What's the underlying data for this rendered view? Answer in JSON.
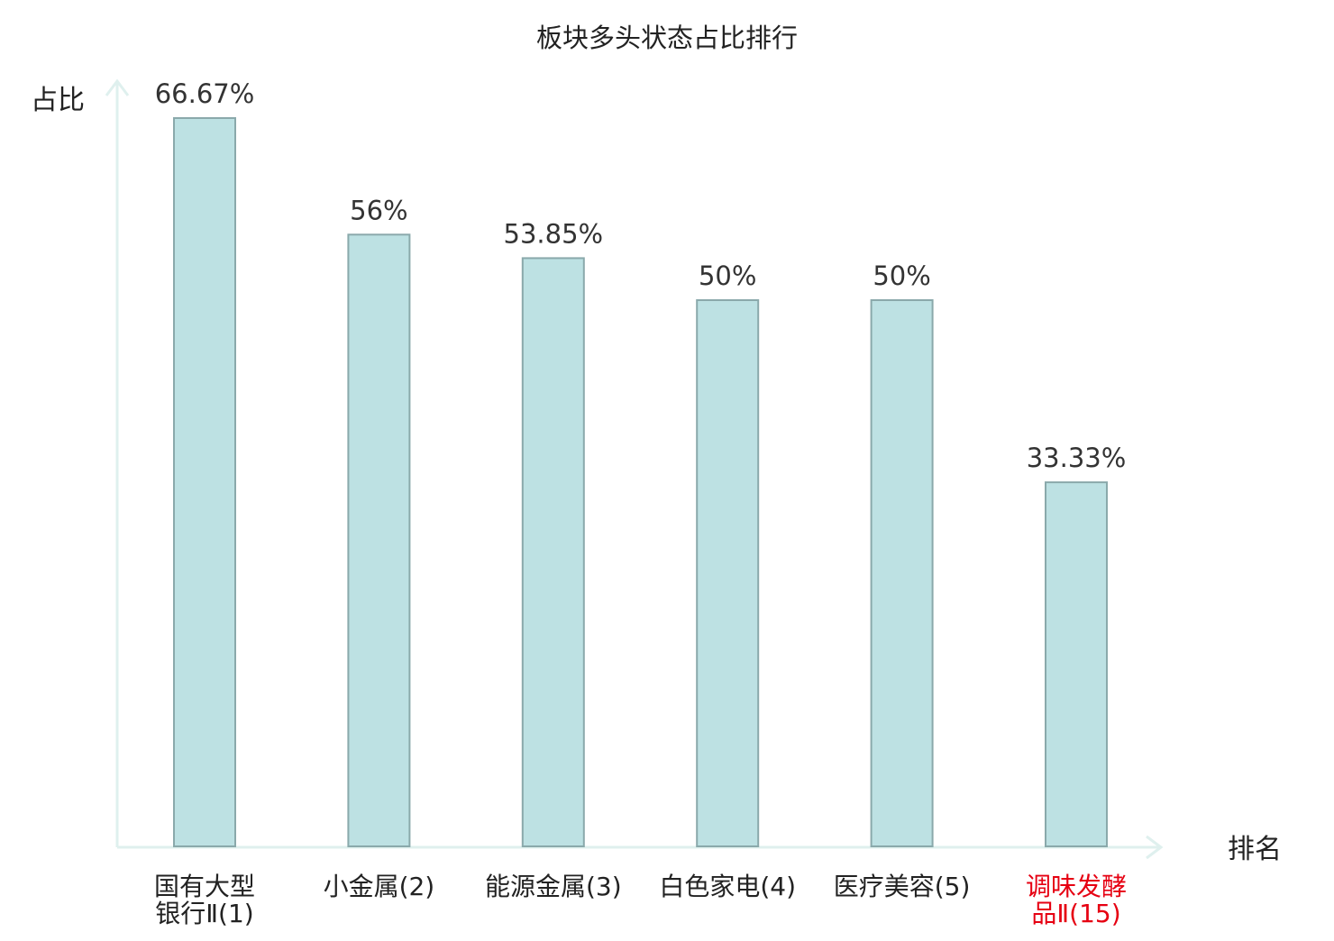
{
  "chart_data": {
    "type": "bar",
    "title": "板块多头状态占比排行",
    "ylabel": "占比",
    "xlabel": "排名",
    "ylim": [
      0,
      0.7
    ],
    "grid": false,
    "categories": [
      [
        "国有大型",
        "银行Ⅱ(1)"
      ],
      [
        "小金属(2)"
      ],
      [
        "能源金属(3)"
      ],
      [
        "白色家电(4)"
      ],
      [
        "医疗美容(5)"
      ],
      [
        "调味发酵",
        "品Ⅱ(15)"
      ]
    ],
    "values": [
      0.6667,
      0.56,
      0.5385,
      0.5,
      0.5,
      0.3333
    ],
    "value_labels": [
      "66.67%",
      "56%",
      "53.85%",
      "50%",
      "50%",
      "33.33%"
    ],
    "highlight_index": 5,
    "colors": {
      "bar_fill": "#bde1e3",
      "bar_stroke": "#8aa9ab",
      "axis": "#dff0ee",
      "label_text": "#333333",
      "highlight_text": "#e60012"
    }
  }
}
